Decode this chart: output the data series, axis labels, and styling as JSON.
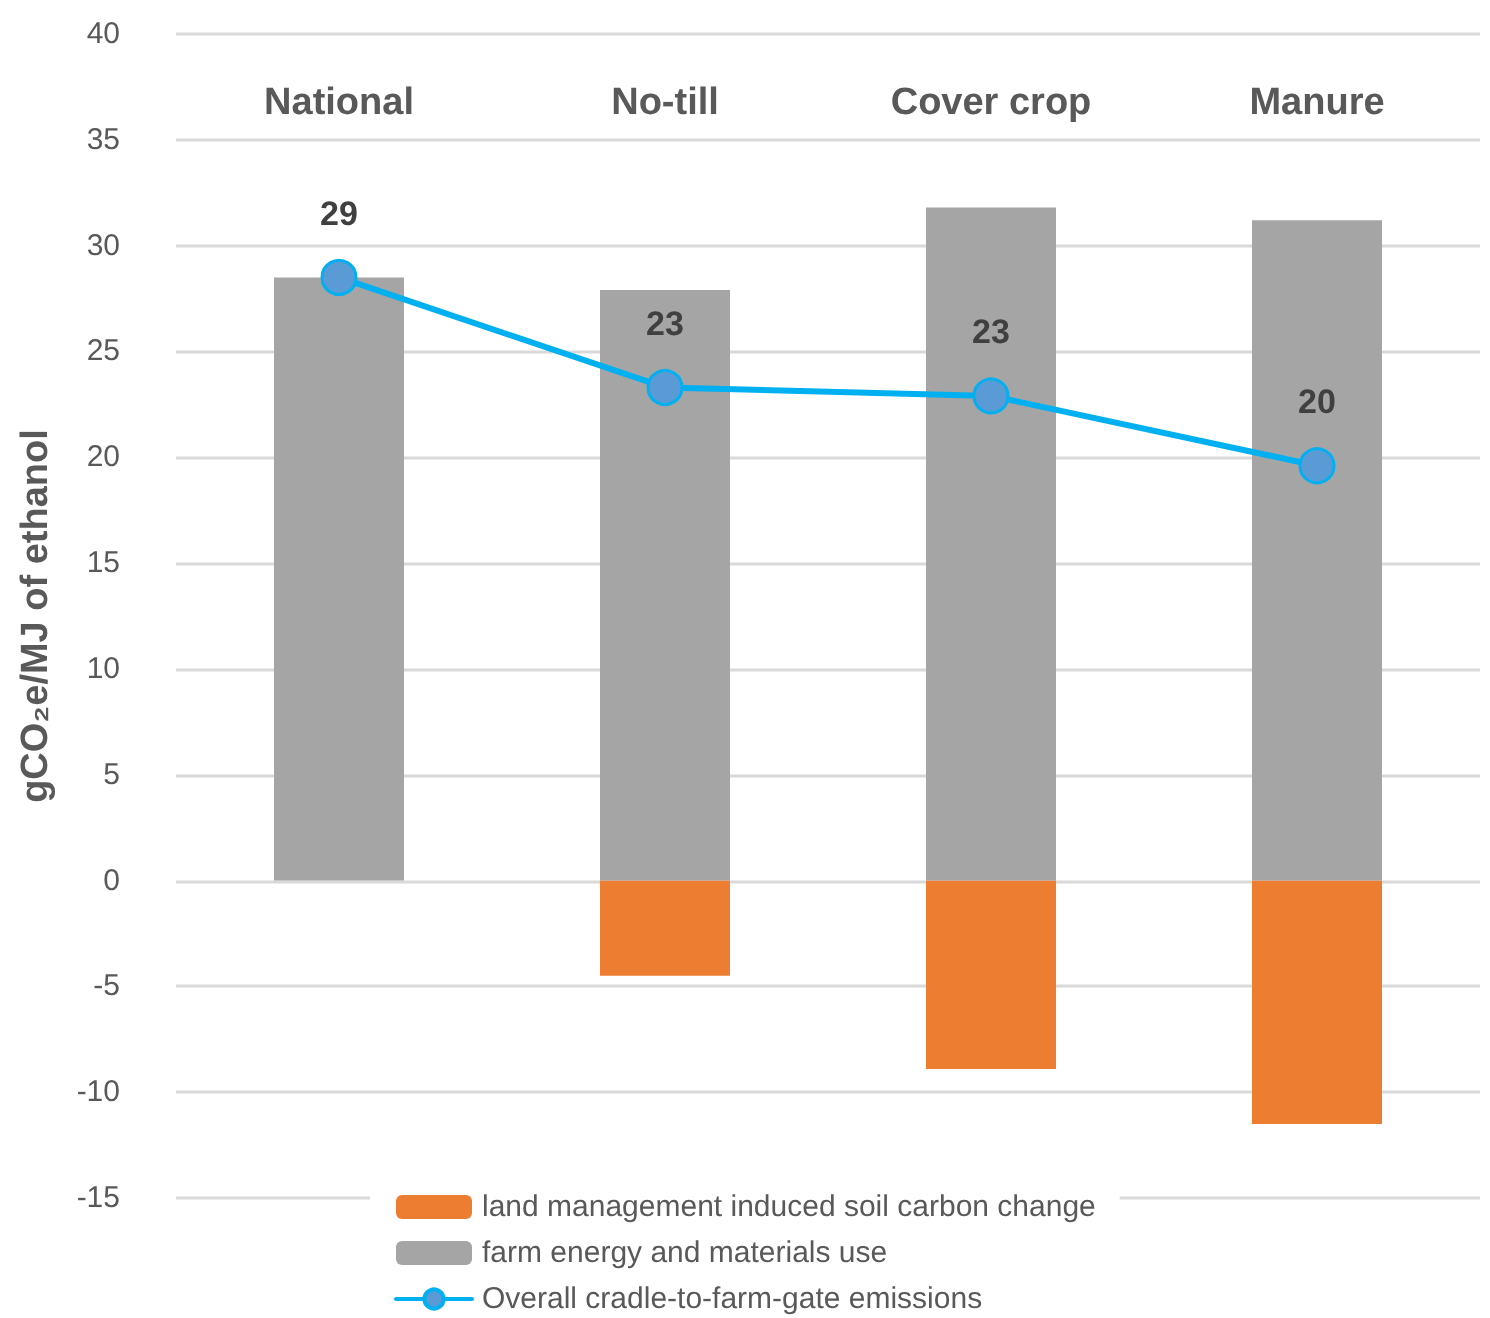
{
  "chart_data": {
    "type": "bar",
    "ylabel": "gCO₂e/MJ of ethanol",
    "categories": [
      "National",
      "No-till",
      "Cover crop",
      "Manure"
    ],
    "stacked": true,
    "series": [
      {
        "name": "land management induced soil carbon change",
        "color": "#ed7d31",
        "values": [
          0,
          -4.5,
          -8.9,
          -11.5
        ]
      },
      {
        "name": "farm energy and materials use",
        "color": "#a5a5a5",
        "values": [
          28.5,
          27.9,
          31.8,
          31.2
        ]
      },
      {
        "name": "Overall cradle-to-farm-gate emissions",
        "type": "line",
        "color": "#00b0f0",
        "marker": "circle",
        "values": [
          28.5,
          23.3,
          22.9,
          19.6
        ],
        "value_labels": [
          "29",
          "23",
          "23",
          "20"
        ]
      }
    ],
    "ylim": [
      -15,
      40
    ],
    "yticks": [
      -15,
      -10,
      -5,
      0,
      5,
      10,
      15,
      20,
      25,
      30,
      35,
      40
    ],
    "grid": "y",
    "legend": "bottom"
  }
}
